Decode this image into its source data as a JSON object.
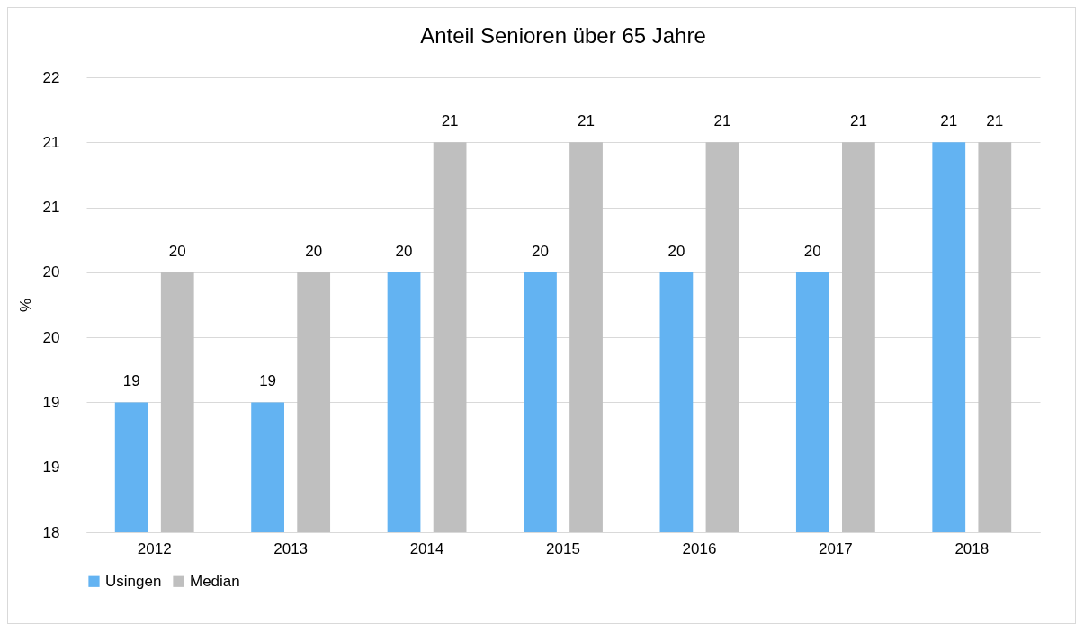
{
  "chart_data": {
    "type": "bar",
    "title": "Anteil Senioren über 65 Jahre",
    "ylabel": "%",
    "categories": [
      "2012",
      "2013",
      "2014",
      "2015",
      "2016",
      "2017",
      "2018"
    ],
    "series": [
      {
        "name": "Usingen",
        "color": "#63b3f2",
        "values": [
          19,
          19,
          20,
          20,
          20,
          20,
          21
        ]
      },
      {
        "name": "Median",
        "color": "#bfbfbf",
        "values": [
          20,
          20,
          21,
          21,
          21,
          21,
          21
        ]
      }
    ],
    "ylim": [
      18,
      21.5
    ],
    "yticks": [
      18,
      {
        "value": 18.5,
        "label": "19"
      },
      19,
      {
        "value": 19.5,
        "label": "20"
      },
      20,
      {
        "value": 20.5,
        "label": "21"
      },
      21,
      {
        "value": 21.5,
        "label": "22"
      }
    ],
    "grid": "y",
    "legend": "bottom",
    "data_labels": true
  }
}
